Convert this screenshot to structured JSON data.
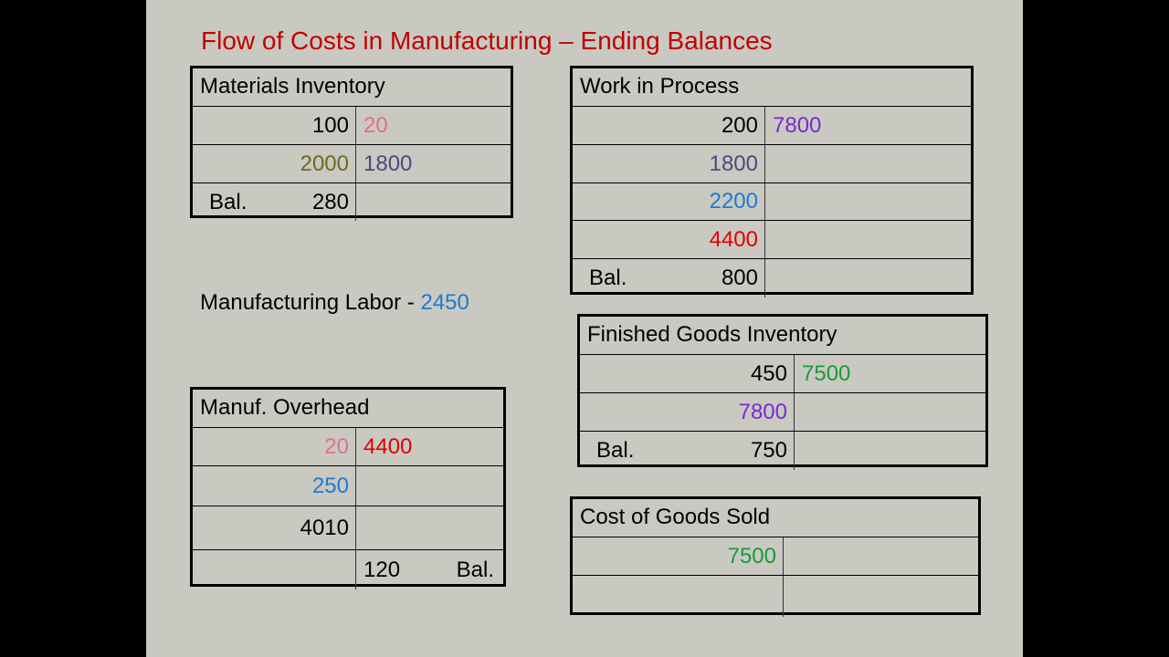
{
  "title": "Flow of Costs in Manufacturing – Ending Balances",
  "labor": {
    "label": "Manufacturing Labor - ",
    "value": "2450",
    "color": "#1f7ad0"
  },
  "colors": {
    "title": "#c00000",
    "black": "#000000",
    "pink": "#e0708f",
    "olive": "#6b6b1f",
    "slate": "#4a4a80",
    "blue": "#1f7ad0",
    "red": "#e00000",
    "purple": "#7a2ad0",
    "green": "#1a9a3a"
  },
  "accounts": [
    {
      "id": "materials-inventory",
      "title": "Materials Inventory",
      "rows": [
        {
          "debit": "100",
          "debit_color": "#000000",
          "credit": "20",
          "credit_color": "#e0708f"
        },
        {
          "debit": "2000",
          "debit_color": "#6b6b1f",
          "credit": "1800",
          "credit_color": "#4a4a80"
        },
        {
          "debit_label": "Bal.",
          "debit": "280",
          "debit_color": "#000000"
        }
      ]
    },
    {
      "id": "work-in-process",
      "title": "Work in Process",
      "rows": [
        {
          "debit": "200",
          "debit_color": "#000000",
          "credit": "7800",
          "credit_color": "#7a2ad0"
        },
        {
          "debit": "1800",
          "debit_color": "#4a4a80"
        },
        {
          "debit": "2200",
          "debit_color": "#1f7ad0"
        },
        {
          "debit": "4400",
          "debit_color": "#e00000"
        },
        {
          "debit_label": "Bal.",
          "debit": "800",
          "debit_color": "#000000"
        }
      ]
    },
    {
      "id": "manufacturing-overhead",
      "title": "Manuf. Overhead",
      "rows": [
        {
          "debit": "20",
          "debit_color": "#e0708f",
          "credit": "4400",
          "credit_color": "#e00000"
        },
        {
          "debit": "250",
          "debit_color": "#1f7ad0"
        },
        {
          "debit": "4010",
          "debit_color": "#000000"
        },
        {
          "credit": "120",
          "credit_color": "#000000",
          "credit_label": "Bal."
        }
      ]
    },
    {
      "id": "finished-goods-inventory",
      "title": "Finished Goods Inventory",
      "rows": [
        {
          "debit": "450",
          "debit_color": "#000000",
          "credit": "7500",
          "credit_color": "#1a9a3a"
        },
        {
          "debit": "7800",
          "debit_color": "#7a2ad0"
        },
        {
          "debit_label": "Bal.",
          "debit": "750",
          "debit_color": "#000000"
        }
      ]
    },
    {
      "id": "cost-of-goods-sold",
      "title": "Cost of Goods Sold",
      "rows": [
        {
          "debit": "7500",
          "debit_color": "#1a9a3a"
        },
        {}
      ]
    }
  ]
}
